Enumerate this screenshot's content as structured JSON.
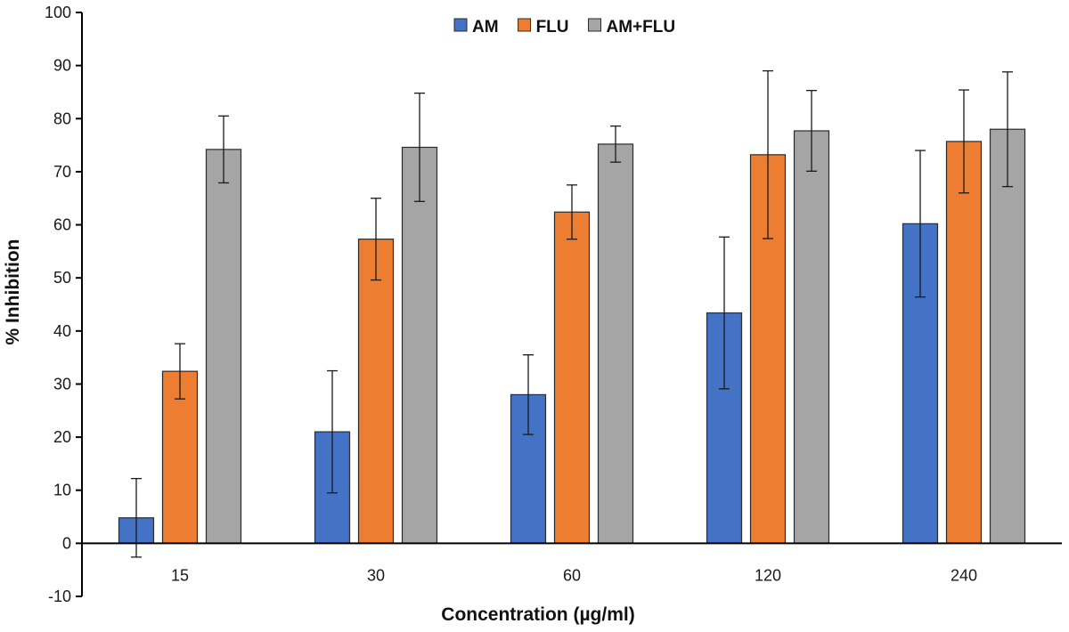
{
  "chart_data": {
    "type": "bar",
    "title": "",
    "xlabel": "Concentration (µg/ml)",
    "ylabel": "% Inhibition",
    "categories": [
      "15",
      "30",
      "60",
      "120",
      "240"
    ],
    "ylim": [
      -10,
      100
    ],
    "yticks": [
      -10,
      0,
      10,
      20,
      30,
      40,
      50,
      60,
      70,
      80,
      90,
      100
    ],
    "legend_position": "top-center",
    "grid": false,
    "error_bars": true,
    "series": [
      {
        "name": "AM",
        "color": "#4472C4",
        "values": [
          4.8,
          21.0,
          28.0,
          43.4,
          60.2
        ],
        "error": [
          7.4,
          11.5,
          7.5,
          14.3,
          13.8
        ]
      },
      {
        "name": "FLU",
        "color": "#ED7D31",
        "values": [
          32.4,
          57.3,
          62.4,
          73.2,
          75.7
        ],
        "error": [
          5.2,
          7.7,
          5.1,
          15.8,
          9.7
        ]
      },
      {
        "name": "AM+FLU",
        "color": "#A5A5A5",
        "values": [
          74.2,
          74.6,
          75.2,
          77.7,
          78.0
        ],
        "error": [
          6.3,
          10.2,
          3.4,
          7.6,
          10.8
        ]
      }
    ]
  }
}
